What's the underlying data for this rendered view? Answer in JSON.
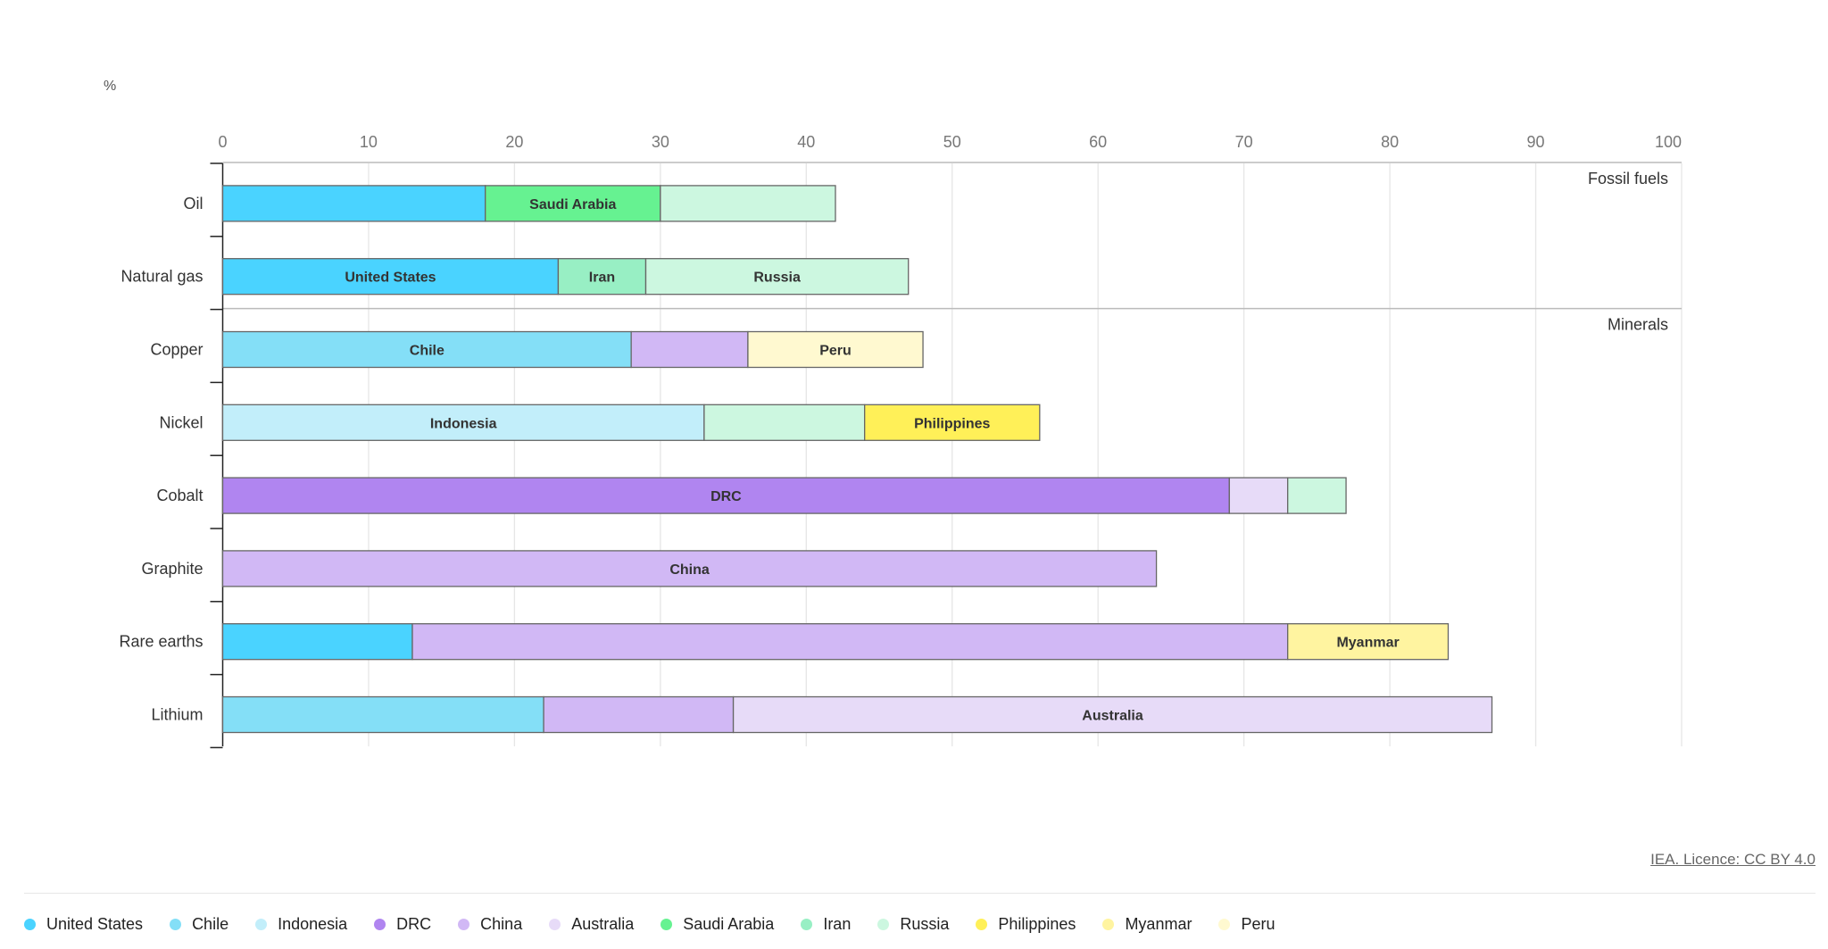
{
  "chart_data": {
    "type": "bar",
    "orientation": "horizontal",
    "stacked": true,
    "unit_label": "%",
    "xlim": [
      0,
      100
    ],
    "xticks": [
      0,
      10,
      20,
      30,
      40,
      50,
      60,
      70,
      80,
      90,
      100
    ],
    "grid": true,
    "groups": [
      {
        "name": "Fossil fuels",
        "categories": [
          "Oil",
          "Natural gas"
        ]
      },
      {
        "name": "Minerals",
        "categories": [
          "Copper",
          "Nickel",
          "Cobalt",
          "Graphite",
          "Rare earths",
          "Lithium"
        ]
      }
    ],
    "categories": [
      "Oil",
      "Natural gas",
      "Copper",
      "Nickel",
      "Cobalt",
      "Graphite",
      "Rare earths",
      "Lithium"
    ],
    "bars": [
      {
        "category": "Oil",
        "segments": [
          {
            "country": "United States",
            "value": 18,
            "label": ""
          },
          {
            "country": "Saudi Arabia",
            "value": 12,
            "label": "Saudi Arabia"
          },
          {
            "country": "Russia",
            "value": 12,
            "label": ""
          }
        ]
      },
      {
        "category": "Natural gas",
        "segments": [
          {
            "country": "United States",
            "value": 23,
            "label": "United States"
          },
          {
            "country": "Iran",
            "value": 6,
            "label": "Iran"
          },
          {
            "country": "Russia",
            "value": 18,
            "label": "Russia"
          }
        ]
      },
      {
        "category": "Copper",
        "segments": [
          {
            "country": "Chile",
            "value": 28,
            "label": "Chile"
          },
          {
            "country": "China",
            "value": 8,
            "label": ""
          },
          {
            "country": "Peru",
            "value": 12,
            "label": "Peru"
          }
        ]
      },
      {
        "category": "Nickel",
        "segments": [
          {
            "country": "Indonesia",
            "value": 33,
            "label": "Indonesia"
          },
          {
            "country": "Russia",
            "value": 11,
            "label": ""
          },
          {
            "country": "Philippines",
            "value": 12,
            "label": "Philippines"
          }
        ]
      },
      {
        "category": "Cobalt",
        "segments": [
          {
            "country": "DRC",
            "value": 69,
            "label": "DRC"
          },
          {
            "country": "Australia",
            "value": 4,
            "label": ""
          },
          {
            "country": "Russia",
            "value": 4,
            "label": ""
          }
        ]
      },
      {
        "category": "Graphite",
        "segments": [
          {
            "country": "China",
            "value": 64,
            "label": "China"
          }
        ]
      },
      {
        "category": "Rare earths",
        "segments": [
          {
            "country": "United States",
            "value": 13,
            "label": ""
          },
          {
            "country": "China",
            "value": 60,
            "label": ""
          },
          {
            "country": "Myanmar",
            "value": 11,
            "label": "Myanmar"
          }
        ]
      },
      {
        "category": "Lithium",
        "segments": [
          {
            "country": "Chile",
            "value": 22,
            "label": ""
          },
          {
            "country": "China",
            "value": 13,
            "label": ""
          },
          {
            "country": "Australia",
            "value": 52,
            "label": "Australia"
          }
        ]
      }
    ],
    "legend": [
      {
        "name": "United States",
        "color": "#4ad3ff"
      },
      {
        "name": "Chile",
        "color": "#84dff7"
      },
      {
        "name": "Indonesia",
        "color": "#c2eefa"
      },
      {
        "name": "DRC",
        "color": "#b085f0"
      },
      {
        "name": "China",
        "color": "#d1b8f5"
      },
      {
        "name": "Australia",
        "color": "#e7dbf8"
      },
      {
        "name": "Saudi Arabia",
        "color": "#66f291"
      },
      {
        "name": "Iran",
        "color": "#98efc4"
      },
      {
        "name": "Russia",
        "color": "#ccf7e0"
      },
      {
        "name": "Philippines",
        "color": "#fff058"
      },
      {
        "name": "Myanmar",
        "color": "#fff4a0"
      },
      {
        "name": "Peru",
        "color": "#fff9d0"
      }
    ],
    "legend_position": "bottom-left"
  },
  "licence": "IEA. Licence: CC BY 4.0"
}
